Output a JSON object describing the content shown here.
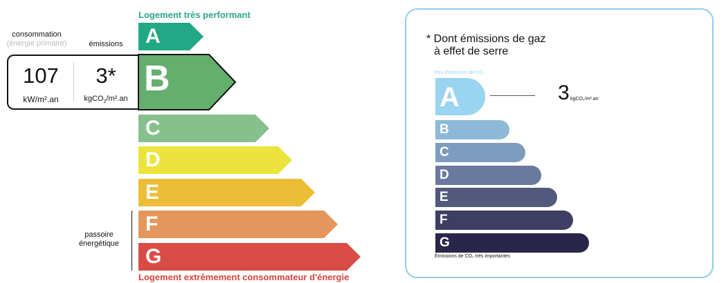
{
  "energy_label": {
    "top_text": "Logement très performant",
    "bottom_text": "Logement extrêmement consommateur d'énergie",
    "consumption_label": "consommation",
    "consumption_sub": "(énergie primaire)",
    "emissions_label": "émissions",
    "consumption_value": "107",
    "consumption_unit": "kW/m².an",
    "emissions_value": "3*",
    "emissions_unit_pre": "kgCO",
    "emissions_unit_sub": "2",
    "emissions_unit_post": "/m².an",
    "passoire_label": "passoire énergétique",
    "current_class": "B",
    "classes": [
      {
        "letter": "A",
        "color": "#22a884"
      },
      {
        "letter": "B",
        "color": "#64ae6e"
      },
      {
        "letter": "C",
        "color": "#85c08d"
      },
      {
        "letter": "D",
        "color": "#ece43c"
      },
      {
        "letter": "E",
        "color": "#ecbe38"
      },
      {
        "letter": "F",
        "color": "#e4975c"
      },
      {
        "letter": "G",
        "color": "#d84c45"
      }
    ]
  },
  "ges_panel": {
    "title_line1": "* Dont émissions de gaz",
    "title_line2": "à effet de serre",
    "top_text": "Peu d'émission de CO₂",
    "bottom_text": "Émissions de CO₂ très importantes",
    "value": "3",
    "unit": "kgCO₂/m².an",
    "current_class": "A",
    "border_color": "#8dcdec",
    "classes": [
      {
        "letter": "A",
        "color": "#9ad4f0"
      },
      {
        "letter": "B",
        "color": "#8cbad6"
      },
      {
        "letter": "C",
        "color": "#7e9cbd"
      },
      {
        "letter": "D",
        "color": "#6a7a9f"
      },
      {
        "letter": "E",
        "color": "#52597d"
      },
      {
        "letter": "F",
        "color": "#3e3e63"
      },
      {
        "letter": "G",
        "color": "#2a2649"
      }
    ]
  }
}
